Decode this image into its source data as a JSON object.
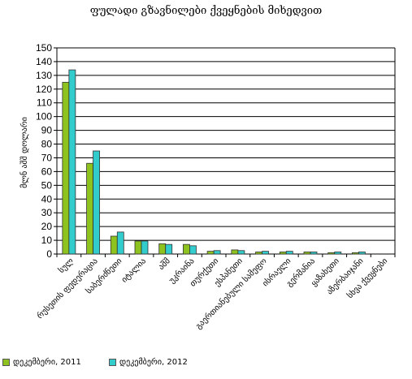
{
  "colors": {
    "series_2011": "#8dc21f",
    "series_2012": "#33cccc",
    "bar_stroke": "#333333",
    "grid": "#000000"
  },
  "chart_data": {
    "type": "bar",
    "title": "ფულადი გზავნილები ქვეყნების მიხედვით",
    "xlabel": "",
    "ylabel": "მლნ აშშ დოლარი",
    "ylim": [
      0,
      150
    ],
    "yticks": [
      0,
      10,
      20,
      30,
      40,
      50,
      60,
      70,
      80,
      90,
      100,
      110,
      120,
      130,
      140,
      150
    ],
    "grid": true,
    "legend_position": "bottom-left",
    "categories": [
      "სულ",
      "რუსეთის ფედერაცია",
      "საბერძნეთი",
      "იტალია",
      "აშშ",
      "უკრაინა",
      "თურქეთი",
      "ესპანეთი",
      "გაერთიანებული სამეფო",
      "ისრაელი",
      "გერმანია",
      "ყაზახეთი",
      "აზერბაიჯანი",
      "სხვა ქვეყნები"
    ],
    "series": [
      {
        "name": "დეკემბერი, 2011",
        "values": [
          125,
          66,
          13,
          9.5,
          7.5,
          7,
          2,
          3,
          1.5,
          1.5,
          1.5,
          1,
          1,
          0
        ]
      },
      {
        "name": "დეკემბერი, 2012",
        "values": [
          134,
          75,
          16,
          9.5,
          7,
          6,
          2.5,
          2.5,
          2,
          2,
          1.5,
          1.5,
          1.5,
          0
        ]
      }
    ]
  }
}
